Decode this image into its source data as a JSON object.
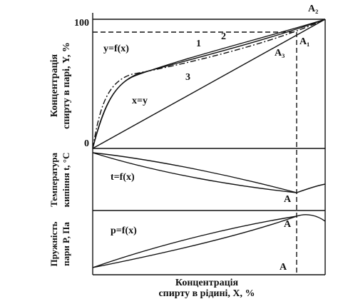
{
  "axis_labels": {
    "top_panel": [
      "Концентрація",
      "спирту в парі, Y, %"
    ],
    "middle_panel": [
      "Температура",
      "кипіння t, °C"
    ],
    "bottom_panel": [
      "Пружність",
      "пари P, Па"
    ],
    "x_axis": [
      "Концентрація",
      "спирту в рідині, X, %"
    ]
  },
  "ticks": {
    "max": "100",
    "origin": "0"
  },
  "top_panel": {
    "function": "y=f(x)",
    "diagonal": "x=y",
    "curve_labels": [
      "1",
      "2",
      "3"
    ],
    "points": [
      "A₂",
      "A₁",
      "A₃"
    ]
  },
  "middle_panel": {
    "function": "t=f(x)",
    "point": "A"
  },
  "bottom_panel": {
    "function": "p=f(x)",
    "points": [
      "A",
      "A"
    ]
  }
}
